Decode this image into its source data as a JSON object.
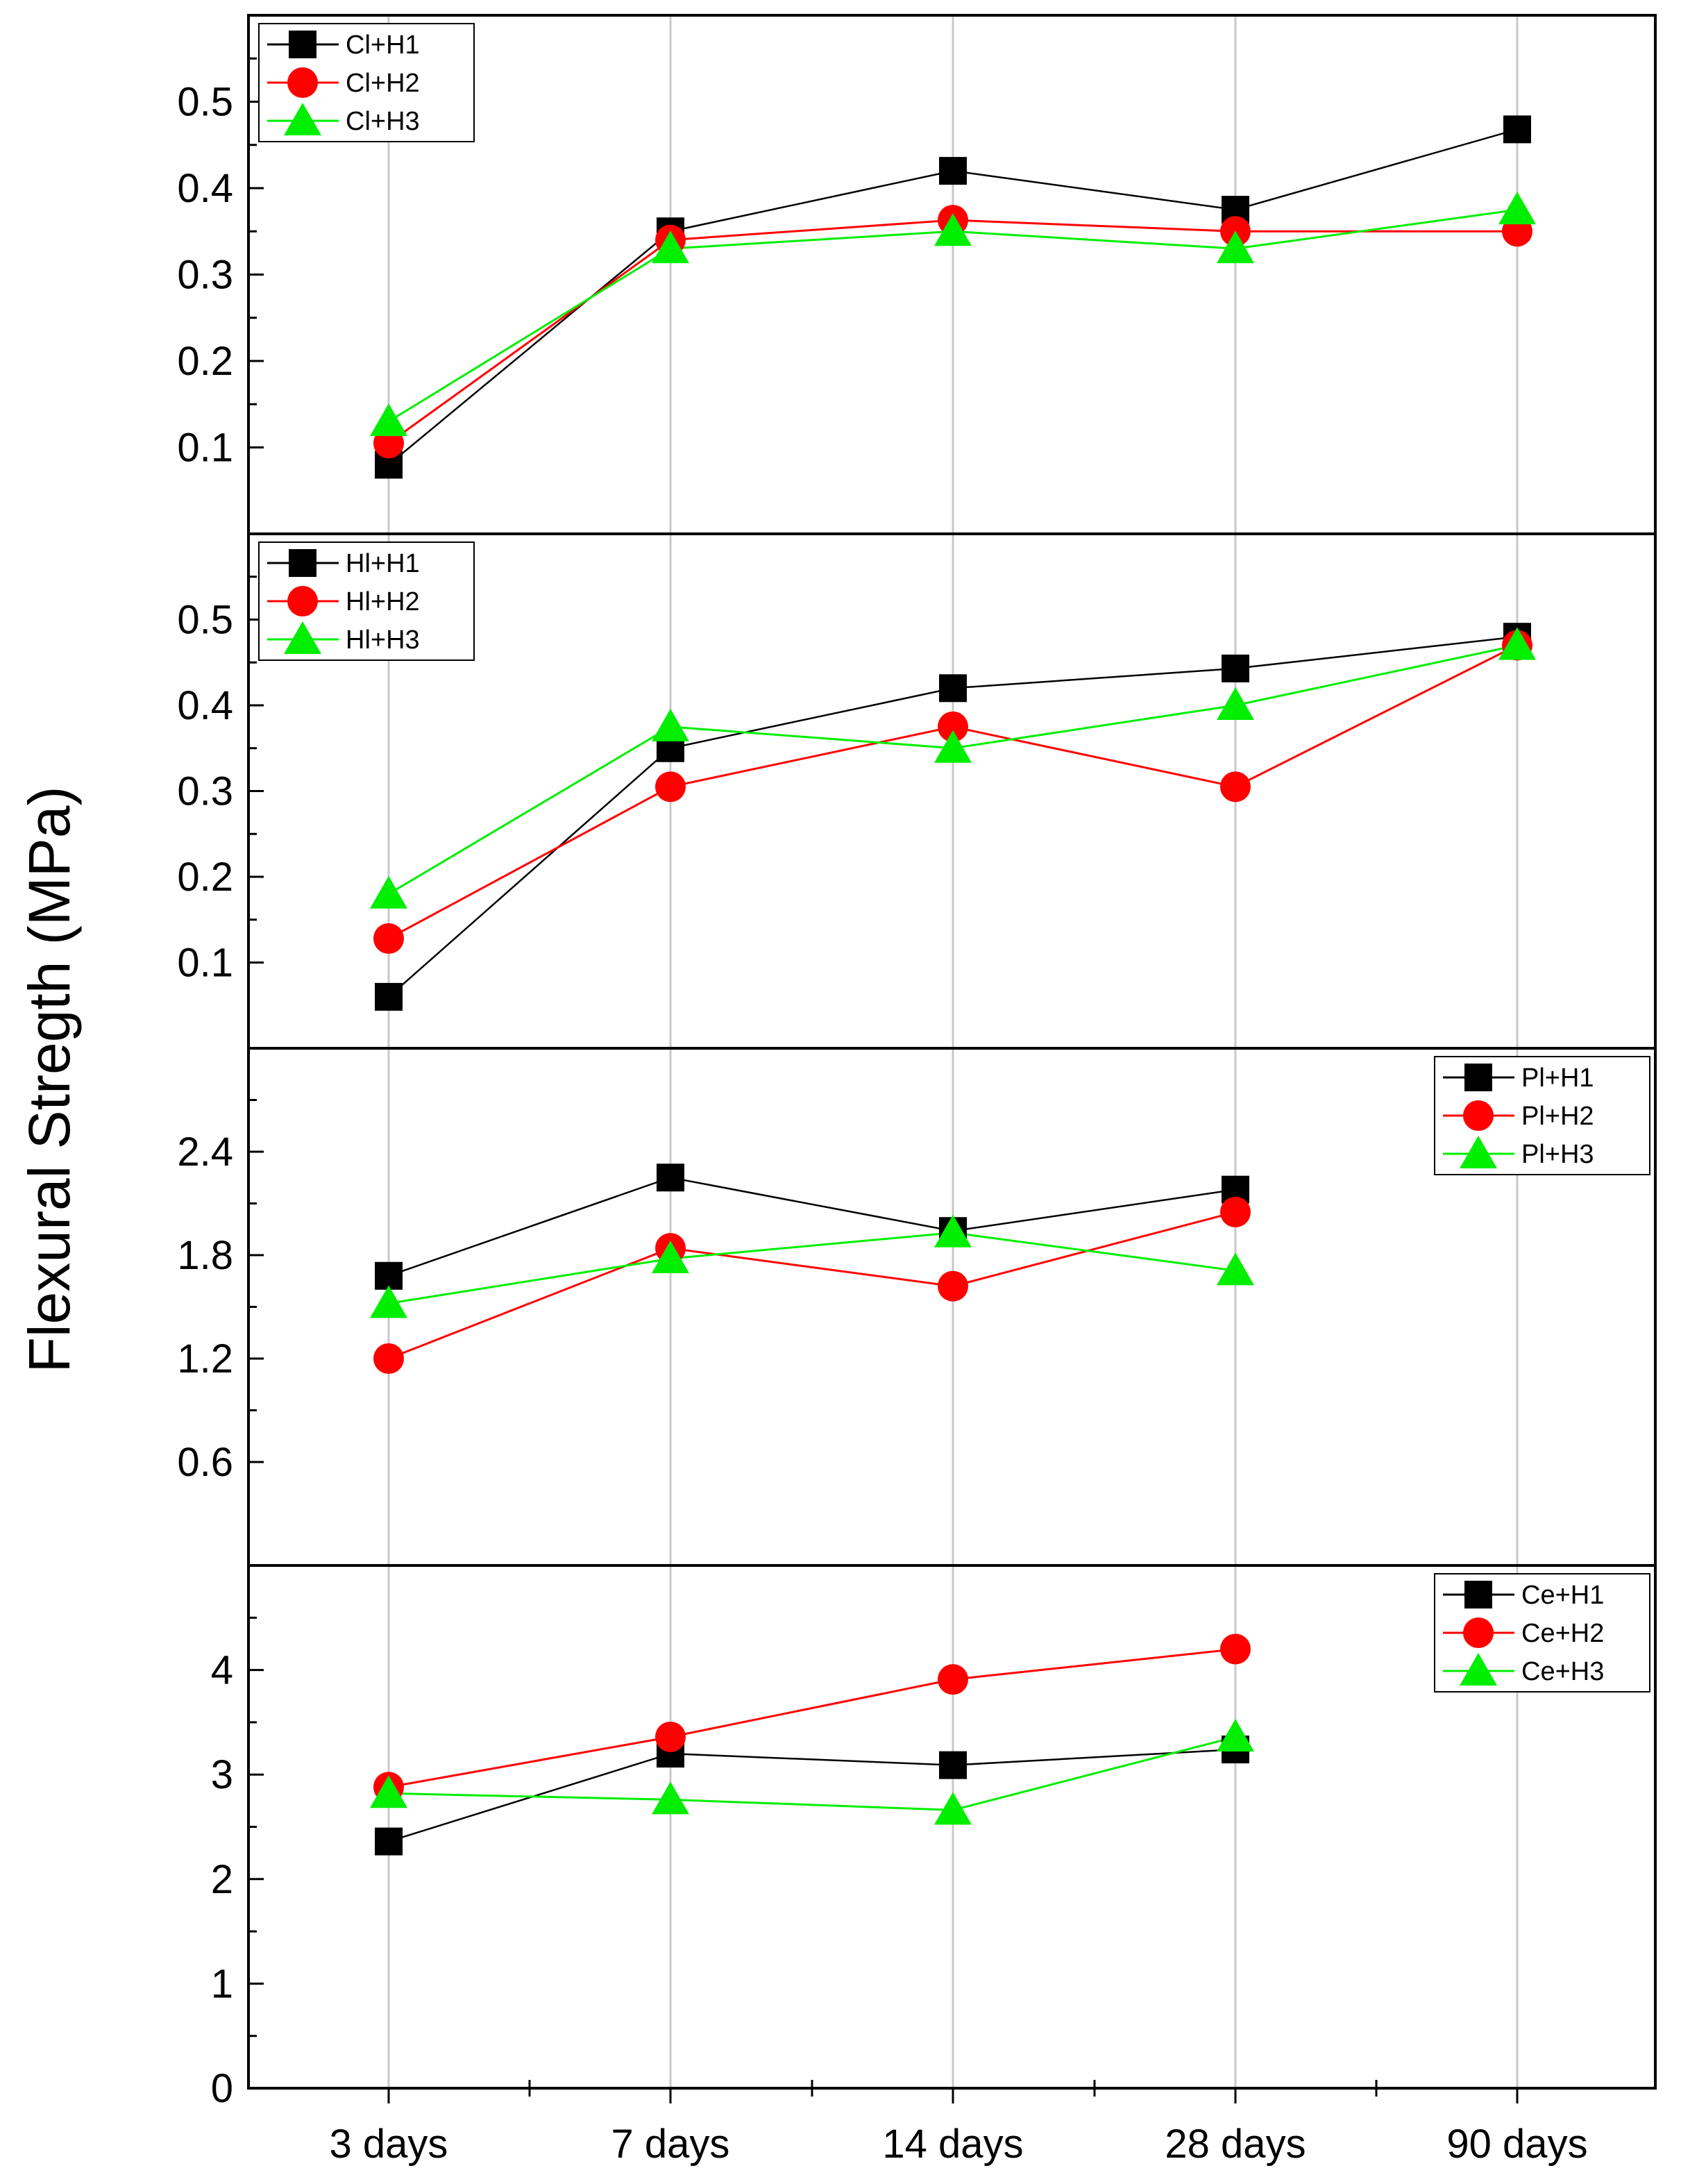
{
  "chart_data": {
    "type": "line",
    "ylabel": "Flexural Stregth (MPa)",
    "categories": [
      "3 days",
      "7 days",
      "14 days",
      "28 days",
      "90 days"
    ],
    "colors": {
      "H1": "#000000",
      "H2": "#ff0000",
      "H3": "#00ee00"
    },
    "markers": {
      "H1": "square",
      "H2": "circle",
      "H3": "triangle"
    },
    "panels": [
      {
        "id": "cl",
        "legend_position": "top-left",
        "ylim": [
          0,
          0.6
        ],
        "yticks": [
          0.1,
          0.2,
          0.3,
          0.4,
          0.5
        ],
        "ytick_labels": [
          "0.1",
          "0.2",
          "0.3",
          "0.4",
          "0.5"
        ],
        "series": [
          {
            "key": "H1",
            "name": "Cl+H1",
            "values": [
              0.08,
              0.35,
              0.42,
              0.375,
              0.468
            ]
          },
          {
            "key": "H2",
            "name": "Cl+H2",
            "values": [
              0.105,
              0.34,
              0.363,
              0.35,
              0.35
            ]
          },
          {
            "key": "H3",
            "name": "Cl+H3",
            "values": [
              0.13,
              0.33,
              0.35,
              0.33,
              0.375
            ]
          }
        ]
      },
      {
        "id": "hl",
        "legend_position": "top-left",
        "ylim": [
          0,
          0.6
        ],
        "yticks": [
          0.1,
          0.2,
          0.3,
          0.4,
          0.5
        ],
        "ytick_labels": [
          "0.1",
          "0.2",
          "0.3",
          "0.4",
          "0.5"
        ],
        "series": [
          {
            "key": "H1",
            "name": "Hl+H1",
            "values": [
              0.06,
              0.35,
              0.42,
              0.443,
              0.48
            ]
          },
          {
            "key": "H2",
            "name": "Hl+H2",
            "values": [
              0.128,
              0.305,
              0.375,
              0.305,
              0.47
            ]
          },
          {
            "key": "H3",
            "name": "Hl+H3",
            "values": [
              0.18,
              0.375,
              0.35,
              0.4,
              0.47
            ]
          }
        ]
      },
      {
        "id": "pl",
        "legend_position": "top-right",
        "ylim": [
          0,
          3.0
        ],
        "yticks": [
          0.6,
          1.2,
          1.8,
          2.4
        ],
        "ytick_labels": [
          "0.6",
          "1.2",
          "1.8",
          "2.4"
        ],
        "series": [
          {
            "key": "H1",
            "name": "Pl+H1",
            "values": [
              1.68,
              2.25,
              1.94,
              2.18,
              null
            ]
          },
          {
            "key": "H2",
            "name": "Pl+H2",
            "values": [
              1.2,
              1.84,
              1.62,
              2.05,
              null
            ]
          },
          {
            "key": "H3",
            "name": "Pl+H3",
            "values": [
              1.52,
              1.78,
              1.93,
              1.71,
              null
            ]
          }
        ]
      },
      {
        "id": "ce",
        "legend_position": "top-right",
        "ylim": [
          0,
          5.0
        ],
        "yticks": [
          0,
          1,
          2,
          3,
          4
        ],
        "ytick_labels": [
          "0",
          "1",
          "2",
          "3",
          "4"
        ],
        "series": [
          {
            "key": "H1",
            "name": "Ce+H1",
            "values": [
              2.36,
              3.2,
              3.09,
              3.24,
              null
            ]
          },
          {
            "key": "H2",
            "name": "Ce+H2",
            "values": [
              2.88,
              3.36,
              3.91,
              4.2,
              null
            ]
          },
          {
            "key": "H3",
            "name": "Ce+H3",
            "values": [
              2.82,
              2.76,
              2.66,
              3.36,
              null
            ]
          }
        ]
      }
    ]
  }
}
